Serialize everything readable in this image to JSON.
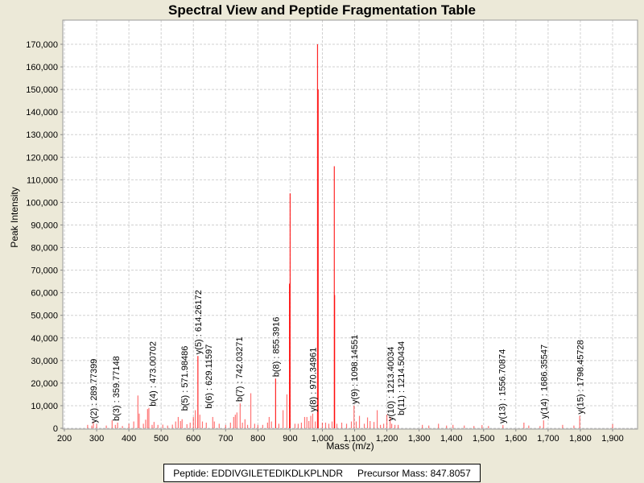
{
  "chart_data": {
    "type": "bar",
    "title": "Spectral View and Peptide Fragmentation Table",
    "xlabel": "Mass (m/z)",
    "ylabel": "Peak Intensity",
    "xlim": [
      200,
      1978
    ],
    "ylim": [
      0,
      179000
    ],
    "xticks": [
      200,
      300,
      400,
      500,
      600,
      700,
      800,
      900,
      1000,
      1100,
      1200,
      1300,
      1400,
      1500,
      1600,
      1700,
      1800,
      1900
    ],
    "xtick_labels": [
      "200",
      "300",
      "400",
      "500",
      "600",
      "700",
      "800",
      "900",
      "1,000",
      "1,100",
      "1,200",
      "1,300",
      "1,400",
      "1,500",
      "1,600",
      "1,700",
      "1,800",
      "1,900"
    ],
    "yticks": [
      0,
      10000,
      20000,
      30000,
      40000,
      50000,
      60000,
      70000,
      80000,
      90000,
      100000,
      110000,
      120000,
      130000,
      140000,
      150000,
      160000,
      170000
    ],
    "ytick_labels": [
      "0",
      "10,000",
      "20,000",
      "30,000",
      "40,000",
      "50,000",
      "60,000",
      "70,000",
      "80,000",
      "90,000",
      "100,000",
      "110,000",
      "120,000",
      "130,000",
      "140,000",
      "150,000",
      "160,000",
      "170,000"
    ],
    "grid": true,
    "color": "#FF0000",
    "peaks": [
      [
        272,
        1500
      ],
      [
        285,
        1200
      ],
      [
        290,
        3000
      ],
      [
        300,
        1800
      ],
      [
        330,
        1200
      ],
      [
        348,
        3500
      ],
      [
        358,
        1500
      ],
      [
        365,
        2500
      ],
      [
        380,
        1000
      ],
      [
        400,
        2000
      ],
      [
        415,
        3000
      ],
      [
        428,
        14500
      ],
      [
        432,
        6500
      ],
      [
        445,
        2000
      ],
      [
        452,
        3800
      ],
      [
        458,
        8500
      ],
      [
        462,
        9000
      ],
      [
        472,
        1500
      ],
      [
        478,
        2800
      ],
      [
        490,
        1500
      ],
      [
        505,
        1600
      ],
      [
        520,
        1200
      ],
      [
        535,
        1600
      ],
      [
        545,
        3000
      ],
      [
        553,
        5000
      ],
      [
        560,
        3200
      ],
      [
        565,
        4000
      ],
      [
        580,
        1800
      ],
      [
        590,
        2500
      ],
      [
        600,
        5000
      ],
      [
        606,
        8000
      ],
      [
        614,
        32000
      ],
      [
        620,
        6000
      ],
      [
        628,
        3000
      ],
      [
        640,
        2500
      ],
      [
        660,
        5000
      ],
      [
        665,
        3000
      ],
      [
        680,
        2000
      ],
      [
        700,
        1500
      ],
      [
        715,
        2500
      ],
      [
        725,
        5000
      ],
      [
        730,
        6000
      ],
      [
        735,
        7000
      ],
      [
        745,
        11000
      ],
      [
        752,
        2500
      ],
      [
        760,
        4000
      ],
      [
        768,
        1500
      ],
      [
        778,
        15500
      ],
      [
        790,
        2000
      ],
      [
        800,
        1500
      ],
      [
        815,
        1500
      ],
      [
        830,
        2500
      ],
      [
        835,
        5000
      ],
      [
        842,
        3000
      ],
      [
        855,
        22000
      ],
      [
        865,
        2000
      ],
      [
        878,
        8000
      ],
      [
        890,
        15000
      ],
      [
        898,
        64000
      ],
      [
        900,
        104000
      ],
      [
        915,
        2000
      ],
      [
        925,
        2000
      ],
      [
        935,
        2500
      ],
      [
        945,
        5000
      ],
      [
        952,
        5000
      ],
      [
        958,
        3200
      ],
      [
        964,
        5500
      ],
      [
        970,
        6500
      ],
      [
        978,
        3000
      ],
      [
        985,
        170000
      ],
      [
        987,
        150000
      ],
      [
        1000,
        2500
      ],
      [
        1010,
        2500
      ],
      [
        1020,
        2000
      ],
      [
        1030,
        3000
      ],
      [
        1037,
        116000
      ],
      [
        1038,
        59000
      ],
      [
        1045,
        2000
      ],
      [
        1060,
        2500
      ],
      [
        1075,
        2000
      ],
      [
        1090,
        3000
      ],
      [
        1098,
        10000
      ],
      [
        1105,
        3000
      ],
      [
        1115,
        5500
      ],
      [
        1130,
        2000
      ],
      [
        1140,
        4800
      ],
      [
        1148,
        3200
      ],
      [
        1160,
        2800
      ],
      [
        1170,
        8000
      ],
      [
        1180,
        1500
      ],
      [
        1190,
        2000
      ],
      [
        1200,
        6000
      ],
      [
        1210,
        5000
      ],
      [
        1215,
        2000
      ],
      [
        1225,
        1500
      ],
      [
        1235,
        1500
      ],
      [
        1310,
        1500
      ],
      [
        1330,
        1200
      ],
      [
        1360,
        2000
      ],
      [
        1385,
        1200
      ],
      [
        1405,
        1500
      ],
      [
        1440,
        1200
      ],
      [
        1470,
        1000
      ],
      [
        1495,
        1400
      ],
      [
        1515,
        1000
      ],
      [
        1560,
        1400
      ],
      [
        1625,
        2500
      ],
      [
        1640,
        1200
      ],
      [
        1675,
        1000
      ],
      [
        1686,
        3500
      ],
      [
        1745,
        1500
      ],
      [
        1780,
        1200
      ],
      [
        1798,
        5500
      ],
      [
        1900,
        1800
      ]
    ],
    "annotations": [
      {
        "text": "y(2) : 289.77399",
        "mz": 289.77,
        "y": 1500
      },
      {
        "text": "b(3) : 359.77148",
        "mz": 359.77,
        "y": 2500
      },
      {
        "text": "b(4) : 473.00702",
        "mz": 473.0,
        "y": 9000
      },
      {
        "text": "b(5) : 571.98486",
        "mz": 571.98,
        "y": 7000
      },
      {
        "text": "y(5) : 614.26172",
        "mz": 614.26,
        "y": 32000
      },
      {
        "text": "b(6) : 629.11597",
        "mz": 629.12,
        "y": 8000
      },
      {
        "text": "b(7) : 742.03271",
        "mz": 742.03,
        "y": 11000
      },
      {
        "text": "b(8) : 855.3916",
        "mz": 855.39,
        "y": 22000
      },
      {
        "text": "y(8) : 970.34961",
        "mz": 970.35,
        "y": 6500
      },
      {
        "text": "y(9) : 1098.14551",
        "mz": 1098.15,
        "y": 10000
      },
      {
        "text": "y(10) : 1213.40034",
        "mz": 1211.0,
        "y": 2500
      },
      {
        "text": "b(11) : 1214.50434",
        "mz": 1214.5,
        "y": 5000
      },
      {
        "text": "y(13) : 1556.70874",
        "mz": 1556.71,
        "y": 1400
      },
      {
        "text": "y(14) : 1686.35547",
        "mz": 1686.36,
        "y": 3500
      },
      {
        "text": "y(15) : 1798.45728",
        "mz": 1798.46,
        "y": 5500
      }
    ]
  },
  "footer": {
    "peptide": "Peptide: EDDIVGILETEDIKDLKPLNDR",
    "precursor": "Precursor Mass: 847.8057"
  }
}
